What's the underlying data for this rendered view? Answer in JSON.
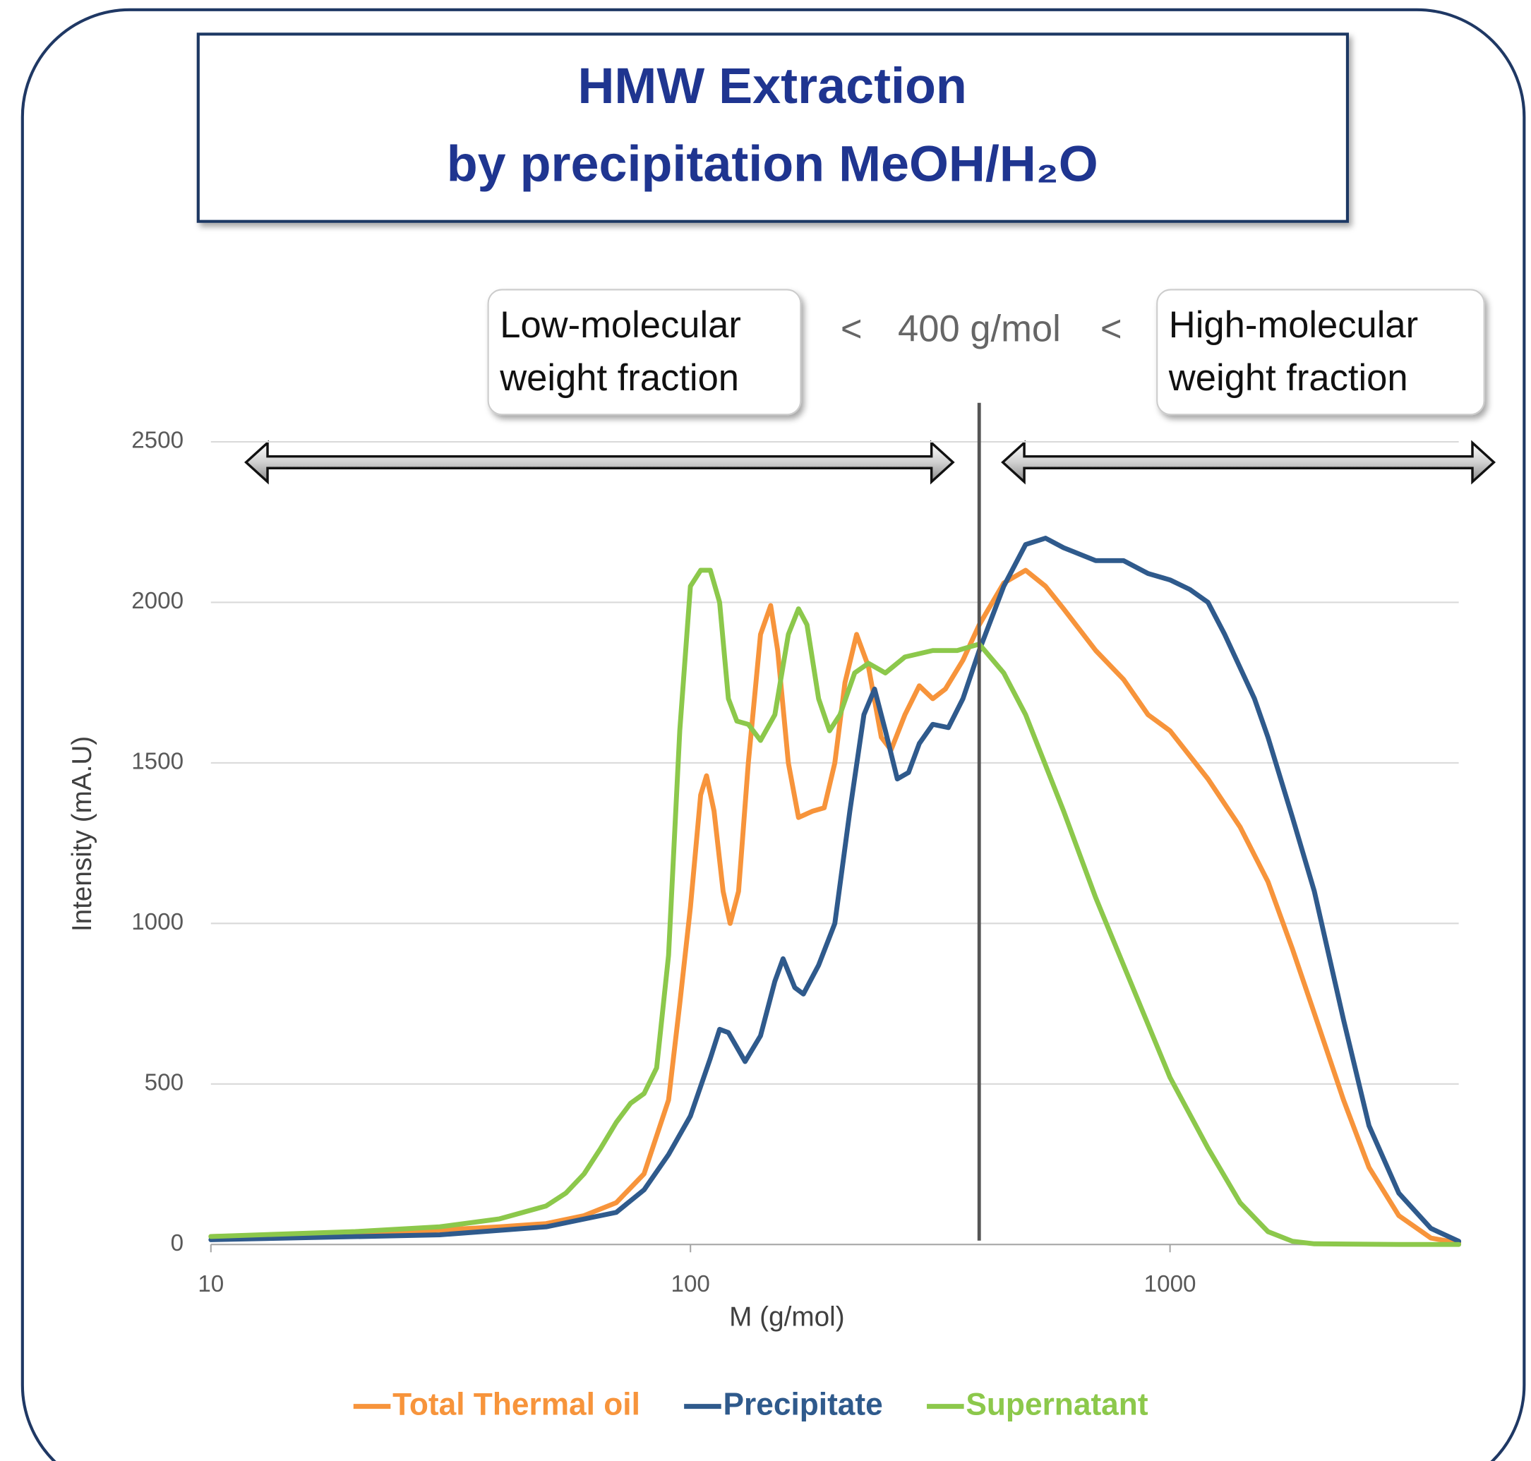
{
  "chart_data": {
    "type": "line",
    "title": [
      "HMW Extraction",
      "by precipitation MeOH/H₂O"
    ],
    "xlabel": "M (g/mol)",
    "ylabel": "Intensity (mA.U)",
    "xscale": "log",
    "xlim": [
      10,
      4000
    ],
    "ylim": [
      0,
      2500
    ],
    "xticks": [
      10,
      100,
      1000
    ],
    "yticks": [
      0,
      500,
      1000,
      1500,
      2000,
      2500
    ],
    "grid": true,
    "legend": "bottom",
    "threshold": {
      "value": 400,
      "label": "400 g/mol"
    },
    "annotations": {
      "low": [
        "Low-molecular",
        "weight fraction"
      ],
      "high": [
        "High-molecular",
        "weight fraction"
      ],
      "less_than": "<"
    },
    "series": [
      {
        "name": "Total Thermal oil",
        "color": "#f7943b",
        "x": [
          10,
          20,
          30,
          40,
          50,
          60,
          70,
          80,
          90,
          95,
          100,
          105,
          108,
          112,
          117,
          121,
          126,
          132,
          140,
          147,
          152,
          160,
          168,
          180,
          190,
          200,
          210,
          222,
          235,
          250,
          262,
          280,
          300,
          320,
          340,
          370,
          400,
          450,
          500,
          550,
          600,
          700,
          800,
          900,
          1000,
          1200,
          1400,
          1600,
          1800,
          2000,
          2300,
          2600,
          3000,
          3500,
          4000
        ],
        "values": [
          25,
          35,
          45,
          55,
          65,
          90,
          130,
          220,
          450,
          750,
          1050,
          1400,
          1460,
          1350,
          1100,
          1000,
          1100,
          1500,
          1900,
          1990,
          1850,
          1500,
          1330,
          1350,
          1360,
          1500,
          1750,
          1900,
          1800,
          1580,
          1540,
          1650,
          1740,
          1700,
          1730,
          1820,
          1930,
          2060,
          2100,
          2050,
          1980,
          1850,
          1760,
          1650,
          1600,
          1450,
          1300,
          1130,
          920,
          720,
          450,
          240,
          90,
          20,
          5
        ]
      },
      {
        "name": "Precipitate",
        "color": "#2f5a8c",
        "x": [
          10,
          30,
          50,
          70,
          80,
          90,
          100,
          110,
          115,
          120,
          130,
          140,
          150,
          156,
          165,
          172,
          185,
          200,
          215,
          230,
          242,
          255,
          270,
          285,
          300,
          320,
          345,
          370,
          400,
          450,
          500,
          550,
          600,
          700,
          800,
          900,
          1000,
          1100,
          1200,
          1300,
          1500,
          1600,
          1800,
          2000,
          2300,
          2600,
          3000,
          3500,
          4000
        ],
        "values": [
          15,
          30,
          55,
          100,
          170,
          280,
          400,
          580,
          670,
          660,
          570,
          650,
          820,
          890,
          800,
          780,
          870,
          1000,
          1350,
          1650,
          1730,
          1600,
          1450,
          1470,
          1560,
          1620,
          1610,
          1700,
          1850,
          2050,
          2180,
          2200,
          2170,
          2130,
          2130,
          2090,
          2070,
          2040,
          2000,
          1900,
          1700,
          1580,
          1330,
          1100,
          700,
          370,
          160,
          50,
          10
        ]
      },
      {
        "name": "Supernatant",
        "color": "#8cc84b",
        "x": [
          10,
          20,
          30,
          40,
          50,
          55,
          60,
          65,
          70,
          75,
          80,
          85,
          90,
          95,
          100,
          105,
          110,
          115,
          120,
          125,
          132,
          140,
          150,
          160,
          168,
          175,
          185,
          195,
          205,
          220,
          235,
          255,
          280,
          320,
          360,
          400,
          450,
          500,
          600,
          700,
          800,
          1000,
          1200,
          1400,
          1600,
          1800,
          2000,
          3000,
          4000
        ],
        "values": [
          25,
          40,
          55,
          80,
          120,
          160,
          220,
          300,
          380,
          440,
          470,
          550,
          900,
          1600,
          2050,
          2100,
          2100,
          2000,
          1700,
          1630,
          1620,
          1570,
          1650,
          1900,
          1980,
          1930,
          1700,
          1600,
          1650,
          1780,
          1810,
          1780,
          1830,
          1850,
          1850,
          1870,
          1780,
          1650,
          1350,
          1080,
          870,
          520,
          300,
          130,
          40,
          10,
          2,
          0,
          0
        ]
      }
    ]
  }
}
